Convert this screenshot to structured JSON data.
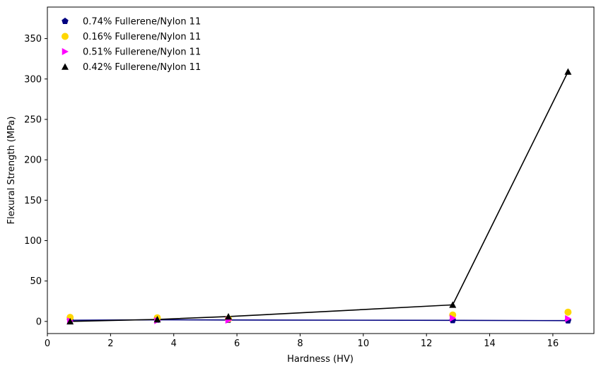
{
  "chart_data": {
    "type": "scatter",
    "xlabel": "Hardness (HV)",
    "ylabel": "Flexural Strength (MPa)",
    "xlim": [
      0,
      17.3
    ],
    "ylim": [
      -15,
      389
    ],
    "xticks": [
      0,
      2,
      4,
      6,
      8,
      10,
      12,
      14,
      16
    ],
    "yticks": [
      0,
      50,
      100,
      150,
      200,
      250,
      300,
      350
    ],
    "grid": false,
    "legend_position": "top-left",
    "series": [
      {
        "name": "0.74% Fullerene/Nylon 11",
        "marker": "pentagon",
        "color": "#000080",
        "line": true,
        "points": [
          [
            0.72,
            1.5
          ],
          [
            3.48,
            2.0
          ],
          [
            5.73,
            1.8
          ],
          [
            12.83,
            1.3
          ],
          [
            16.48,
            1.0
          ]
        ]
      },
      {
        "name": "0.16% Fullerene/Nylon 11",
        "marker": "circle",
        "color": "#FFD700",
        "line": false,
        "points": [
          [
            0.72,
            5.0
          ],
          [
            3.48,
            4.5
          ],
          [
            5.73,
            3.0
          ],
          [
            12.83,
            8.0
          ],
          [
            16.48,
            11.5
          ]
        ]
      },
      {
        "name": "0.51% Fullerene/Nylon 11",
        "marker": "triangle-right",
        "color": "#FF00FF",
        "line": false,
        "points": [
          [
            0.72,
            0.5
          ],
          [
            3.48,
            1.0
          ],
          [
            5.73,
            1.5
          ],
          [
            12.83,
            4.0
          ],
          [
            16.48,
            3.5
          ]
        ]
      },
      {
        "name": "0.42% Fullerene/Nylon 11",
        "marker": "triangle-up",
        "color": "#000000",
        "line": true,
        "points": [
          [
            0.72,
            0.0
          ],
          [
            3.48,
            2.5
          ],
          [
            5.73,
            6.0
          ],
          [
            12.83,
            20.5
          ],
          [
            16.48,
            309.0
          ]
        ]
      }
    ]
  }
}
